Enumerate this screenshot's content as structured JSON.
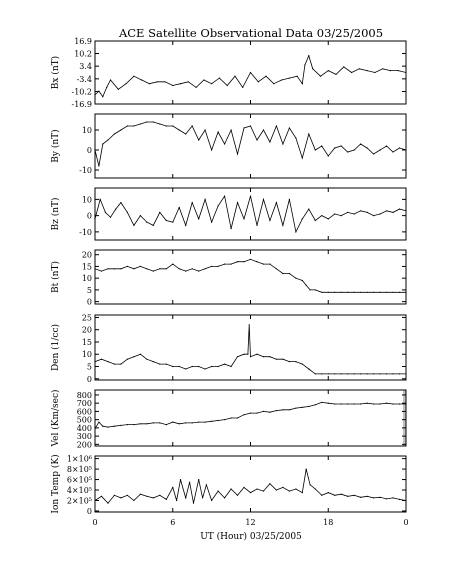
{
  "chart_data": [
    {
      "type": "line",
      "title": "ACE Satellite Observational Data   03/25/2005",
      "ylabel": "Bx (nT)",
      "yticks": [
        "16.9",
        "10.2",
        "3.4",
        "-3.4",
        "-10.2",
        "-16.9"
      ],
      "ytick_values": [
        16.9,
        10.2,
        3.4,
        -3.4,
        -10.2,
        -16.9
      ],
      "ylim": [
        -16.9,
        16.9
      ],
      "x": [
        0,
        0.3,
        0.6,
        0.9,
        1.2,
        1.8,
        2.4,
        3.0,
        3.6,
        4.2,
        4.8,
        5.4,
        6.0,
        6.6,
        7.2,
        7.8,
        8.4,
        9.0,
        9.6,
        10.2,
        10.8,
        11.4,
        12.0,
        12.6,
        13.2,
        13.8,
        14.4,
        15.0,
        15.6,
        16.0,
        16.2,
        16.5,
        16.8,
        17.4,
        18.0,
        18.6,
        19.2,
        19.8,
        20.4,
        21.0,
        21.6,
        22.2,
        22.8,
        23.4,
        24.0
      ],
      "y": [
        -12,
        -10,
        -13,
        -8,
        -4,
        -9,
        -6,
        -2,
        -4,
        -6,
        -5,
        -5,
        -7,
        -6,
        -5,
        -8,
        -4,
        -6,
        -3,
        -7,
        -2,
        -8,
        0,
        -5,
        -2,
        -6,
        -4,
        -3,
        -2,
        -6,
        4,
        9,
        2,
        -2,
        1,
        -1,
        3,
        0,
        2,
        1,
        0,
        2,
        1,
        1,
        0
      ]
    },
    {
      "type": "line",
      "ylabel": "By (nT)",
      "yticks": [
        "10",
        "0",
        "-10"
      ],
      "ytick_values": [
        10,
        0,
        -10
      ],
      "ylim": [
        -14,
        18
      ],
      "x": [
        0,
        0.3,
        0.6,
        1.0,
        1.5,
        2.0,
        2.5,
        3.0,
        3.5,
        4.0,
        4.5,
        5.0,
        5.5,
        6.0,
        6.5,
        7.0,
        7.5,
        8.0,
        8.5,
        9.0,
        9.5,
        10.0,
        10.5,
        11.0,
        11.5,
        12.0,
        12.5,
        13.0,
        13.5,
        14.0,
        14.5,
        15.0,
        15.5,
        16.0,
        16.5,
        17.0,
        17.5,
        18.0,
        18.5,
        19.0,
        19.5,
        20.0,
        20.5,
        21.0,
        21.5,
        22.0,
        22.5,
        23.0,
        23.5,
        24.0
      ],
      "y": [
        0,
        -8,
        3,
        5,
        8,
        10,
        12,
        12,
        13,
        14,
        14,
        13,
        12,
        12,
        10,
        8,
        12,
        5,
        10,
        0,
        9,
        3,
        10,
        -2,
        11,
        12,
        5,
        10,
        4,
        12,
        3,
        11,
        6,
        -4,
        8,
        0,
        2,
        -3,
        1,
        2,
        -1,
        0,
        3,
        1,
        -2,
        0,
        2,
        -1,
        1,
        0
      ]
    },
    {
      "type": "line",
      "ylabel": "Bz (nT)",
      "yticks": [
        "10",
        "0",
        "-10"
      ],
      "ytick_values": [
        10,
        0,
        -10
      ],
      "ylim": [
        -15,
        17
      ],
      "x": [
        0,
        0.4,
        0.8,
        1.2,
        1.6,
        2.0,
        2.5,
        3.0,
        3.5,
        4.0,
        4.5,
        5.0,
        5.5,
        6.0,
        6.5,
        7.0,
        7.5,
        8.0,
        8.5,
        9.0,
        9.5,
        10.0,
        10.5,
        11.0,
        11.5,
        12.0,
        12.5,
        13.0,
        13.5,
        14.0,
        14.5,
        15.0,
        15.5,
        16.0,
        16.5,
        17.0,
        17.5,
        18.0,
        18.5,
        19.0,
        19.5,
        20.0,
        20.5,
        21.0,
        21.5,
        22.0,
        22.5,
        23.0,
        23.5,
        24.0
      ],
      "y": [
        -2,
        10,
        2,
        -1,
        4,
        8,
        2,
        -6,
        0,
        -4,
        -6,
        2,
        -3,
        -4,
        5,
        -6,
        8,
        -2,
        10,
        -4,
        6,
        12,
        -8,
        8,
        -2,
        12,
        -6,
        10,
        -3,
        8,
        -6,
        10,
        -10,
        -2,
        4,
        -3,
        0,
        -2,
        1,
        0,
        2,
        1,
        3,
        2,
        0,
        1,
        3,
        2,
        4,
        3
      ]
    },
    {
      "type": "line",
      "ylabel": "Bt (nT)",
      "yticks": [
        "20",
        "15",
        "10",
        "5",
        "0"
      ],
      "ytick_values": [
        20,
        15,
        10,
        5,
        0
      ],
      "ylim": [
        -1,
        22
      ],
      "x": [
        0,
        0.5,
        1.0,
        1.5,
        2.0,
        2.5,
        3.0,
        3.5,
        4.0,
        4.5,
        5.0,
        5.5,
        6.0,
        6.5,
        7.0,
        7.5,
        8.0,
        8.5,
        9.0,
        9.5,
        10.0,
        10.5,
        11.0,
        11.5,
        12.0,
        12.5,
        13.0,
        13.5,
        14.0,
        14.5,
        15.0,
        15.5,
        16.0,
        16.3,
        16.6,
        17.0,
        17.5,
        18.0,
        18.5,
        19.0,
        19.5,
        20.0,
        20.5,
        21.0,
        21.5,
        22.0,
        22.5,
        23.0,
        23.5,
        24.0
      ],
      "y": [
        14,
        13,
        14,
        14,
        14,
        15,
        14,
        15,
        14,
        13,
        14,
        14,
        16,
        14,
        13,
        14,
        13,
        14,
        15,
        15,
        16,
        16,
        17,
        17,
        18,
        17,
        16,
        16,
        14,
        12,
        12,
        10,
        9,
        7,
        5,
        5,
        4,
        4,
        4,
        4,
        4,
        4,
        4,
        4,
        4,
        4,
        4,
        4,
        4,
        4
      ]
    },
    {
      "type": "line",
      "ylabel": "Den (1/cc)",
      "yticks": [
        "25",
        "20",
        "15",
        "10",
        "5",
        "0"
      ],
      "ytick_values": [
        25,
        20,
        15,
        10,
        5,
        0
      ],
      "ylim": [
        -0.5,
        26
      ],
      "x": [
        0,
        0.5,
        1.0,
        1.5,
        2.0,
        2.5,
        3.0,
        3.5,
        4.0,
        4.5,
        5.0,
        5.5,
        6.0,
        6.5,
        7.0,
        7.5,
        8.0,
        8.5,
        9.0,
        9.5,
        10.0,
        10.5,
        11.0,
        11.5,
        11.8,
        11.9,
        12.0,
        12.5,
        13.0,
        13.5,
        14.0,
        14.5,
        15.0,
        15.5,
        16.0,
        16.5,
        17.0,
        17.5,
        18.0,
        18.5,
        19.0,
        19.5,
        20.0,
        20.5,
        21.0,
        21.5,
        22.0,
        22.5,
        23.0,
        23.5,
        24.0
      ],
      "y": [
        7,
        8,
        7,
        6,
        6,
        8,
        9,
        10,
        8,
        7,
        6,
        6,
        5,
        5,
        4,
        5,
        5,
        4,
        5,
        5,
        6,
        5,
        9,
        10,
        10,
        22,
        9,
        10,
        9,
        9,
        8,
        8,
        7,
        7,
        6,
        4,
        2,
        2,
        2,
        2,
        2,
        2,
        2,
        2,
        2,
        2,
        2,
        2,
        2,
        2,
        2
      ]
    },
    {
      "type": "line",
      "ylabel": "Vel (Km/sec)",
      "yticks": [
        "800",
        "700",
        "600",
        "500",
        "400",
        "300",
        "200"
      ],
      "ytick_values": [
        800,
        700,
        600,
        500,
        400,
        300,
        200
      ],
      "ylim": [
        180,
        860
      ],
      "x": [
        0,
        0.3,
        0.6,
        1.0,
        1.5,
        2.0,
        2.5,
        3.0,
        3.5,
        4.0,
        4.5,
        5.0,
        5.5,
        6.0,
        6.5,
        7.0,
        7.5,
        8.0,
        8.5,
        9.0,
        9.5,
        10.0,
        10.5,
        11.0,
        11.5,
        12.0,
        12.5,
        13.0,
        13.5,
        14.0,
        14.5,
        15.0,
        15.5,
        16.0,
        16.5,
        17.0,
        17.5,
        18.0,
        18.5,
        19.0,
        19.5,
        20.0,
        20.5,
        21.0,
        21.5,
        22.0,
        22.5,
        23.0,
        23.5,
        24.0
      ],
      "y": [
        390,
        470,
        420,
        410,
        420,
        430,
        440,
        440,
        450,
        450,
        460,
        460,
        440,
        470,
        450,
        460,
        460,
        470,
        470,
        480,
        490,
        500,
        520,
        520,
        560,
        580,
        580,
        600,
        590,
        610,
        620,
        620,
        640,
        650,
        660,
        680,
        710,
        700,
        690,
        690,
        690,
        690,
        690,
        700,
        690,
        690,
        700,
        690,
        690,
        690
      ]
    },
    {
      "type": "line",
      "ylabel": "Ion Temp (K)",
      "yticks": [
        "1×10⁶",
        "8×10⁵",
        "6×10⁵",
        "4×10⁵",
        "2×10⁵",
        "0"
      ],
      "ytick_values": [
        1000000,
        800000,
        600000,
        400000,
        200000,
        0
      ],
      "ylim": [
        -20000,
        1050000
      ],
      "x": [
        0,
        0.5,
        1.0,
        1.5,
        2.0,
        2.5,
        3.0,
        3.5,
        4.0,
        4.5,
        5.0,
        5.5,
        6.0,
        6.3,
        6.6,
        7.0,
        7.3,
        7.6,
        8.0,
        8.3,
        8.6,
        9.0,
        9.5,
        10.0,
        10.5,
        11.0,
        11.5,
        12.0,
        12.5,
        13.0,
        13.5,
        14.0,
        14.5,
        15.0,
        15.5,
        16.0,
        16.3,
        16.6,
        17.0,
        17.5,
        18.0,
        18.5,
        19.0,
        19.5,
        20.0,
        20.5,
        21.0,
        21.5,
        22.0,
        22.5,
        23.0,
        23.5,
        24.0
      ],
      "y": [
        200000,
        280000,
        150000,
        300000,
        250000,
        300000,
        200000,
        320000,
        280000,
        250000,
        300000,
        220000,
        450000,
        200000,
        600000,
        250000,
        550000,
        150000,
        600000,
        250000,
        500000,
        200000,
        380000,
        250000,
        420000,
        300000,
        450000,
        350000,
        420000,
        380000,
        520000,
        400000,
        450000,
        380000,
        420000,
        350000,
        800000,
        500000,
        420000,
        300000,
        350000,
        300000,
        320000,
        280000,
        300000,
        260000,
        280000,
        250000,
        260000,
        230000,
        250000,
        220000,
        200000
      ]
    }
  ],
  "x_axis": {
    "label": "UT (Hour)   03/25/2005",
    "ticks": [
      "0",
      "6",
      "12",
      "18",
      "0"
    ],
    "tick_hours": [
      0,
      6,
      12,
      18,
      24
    ],
    "range": [
      0,
      24
    ]
  },
  "colors": {
    "line": "#000000",
    "gap_shade": "#bfbfbf",
    "background": "#ffffff"
  }
}
